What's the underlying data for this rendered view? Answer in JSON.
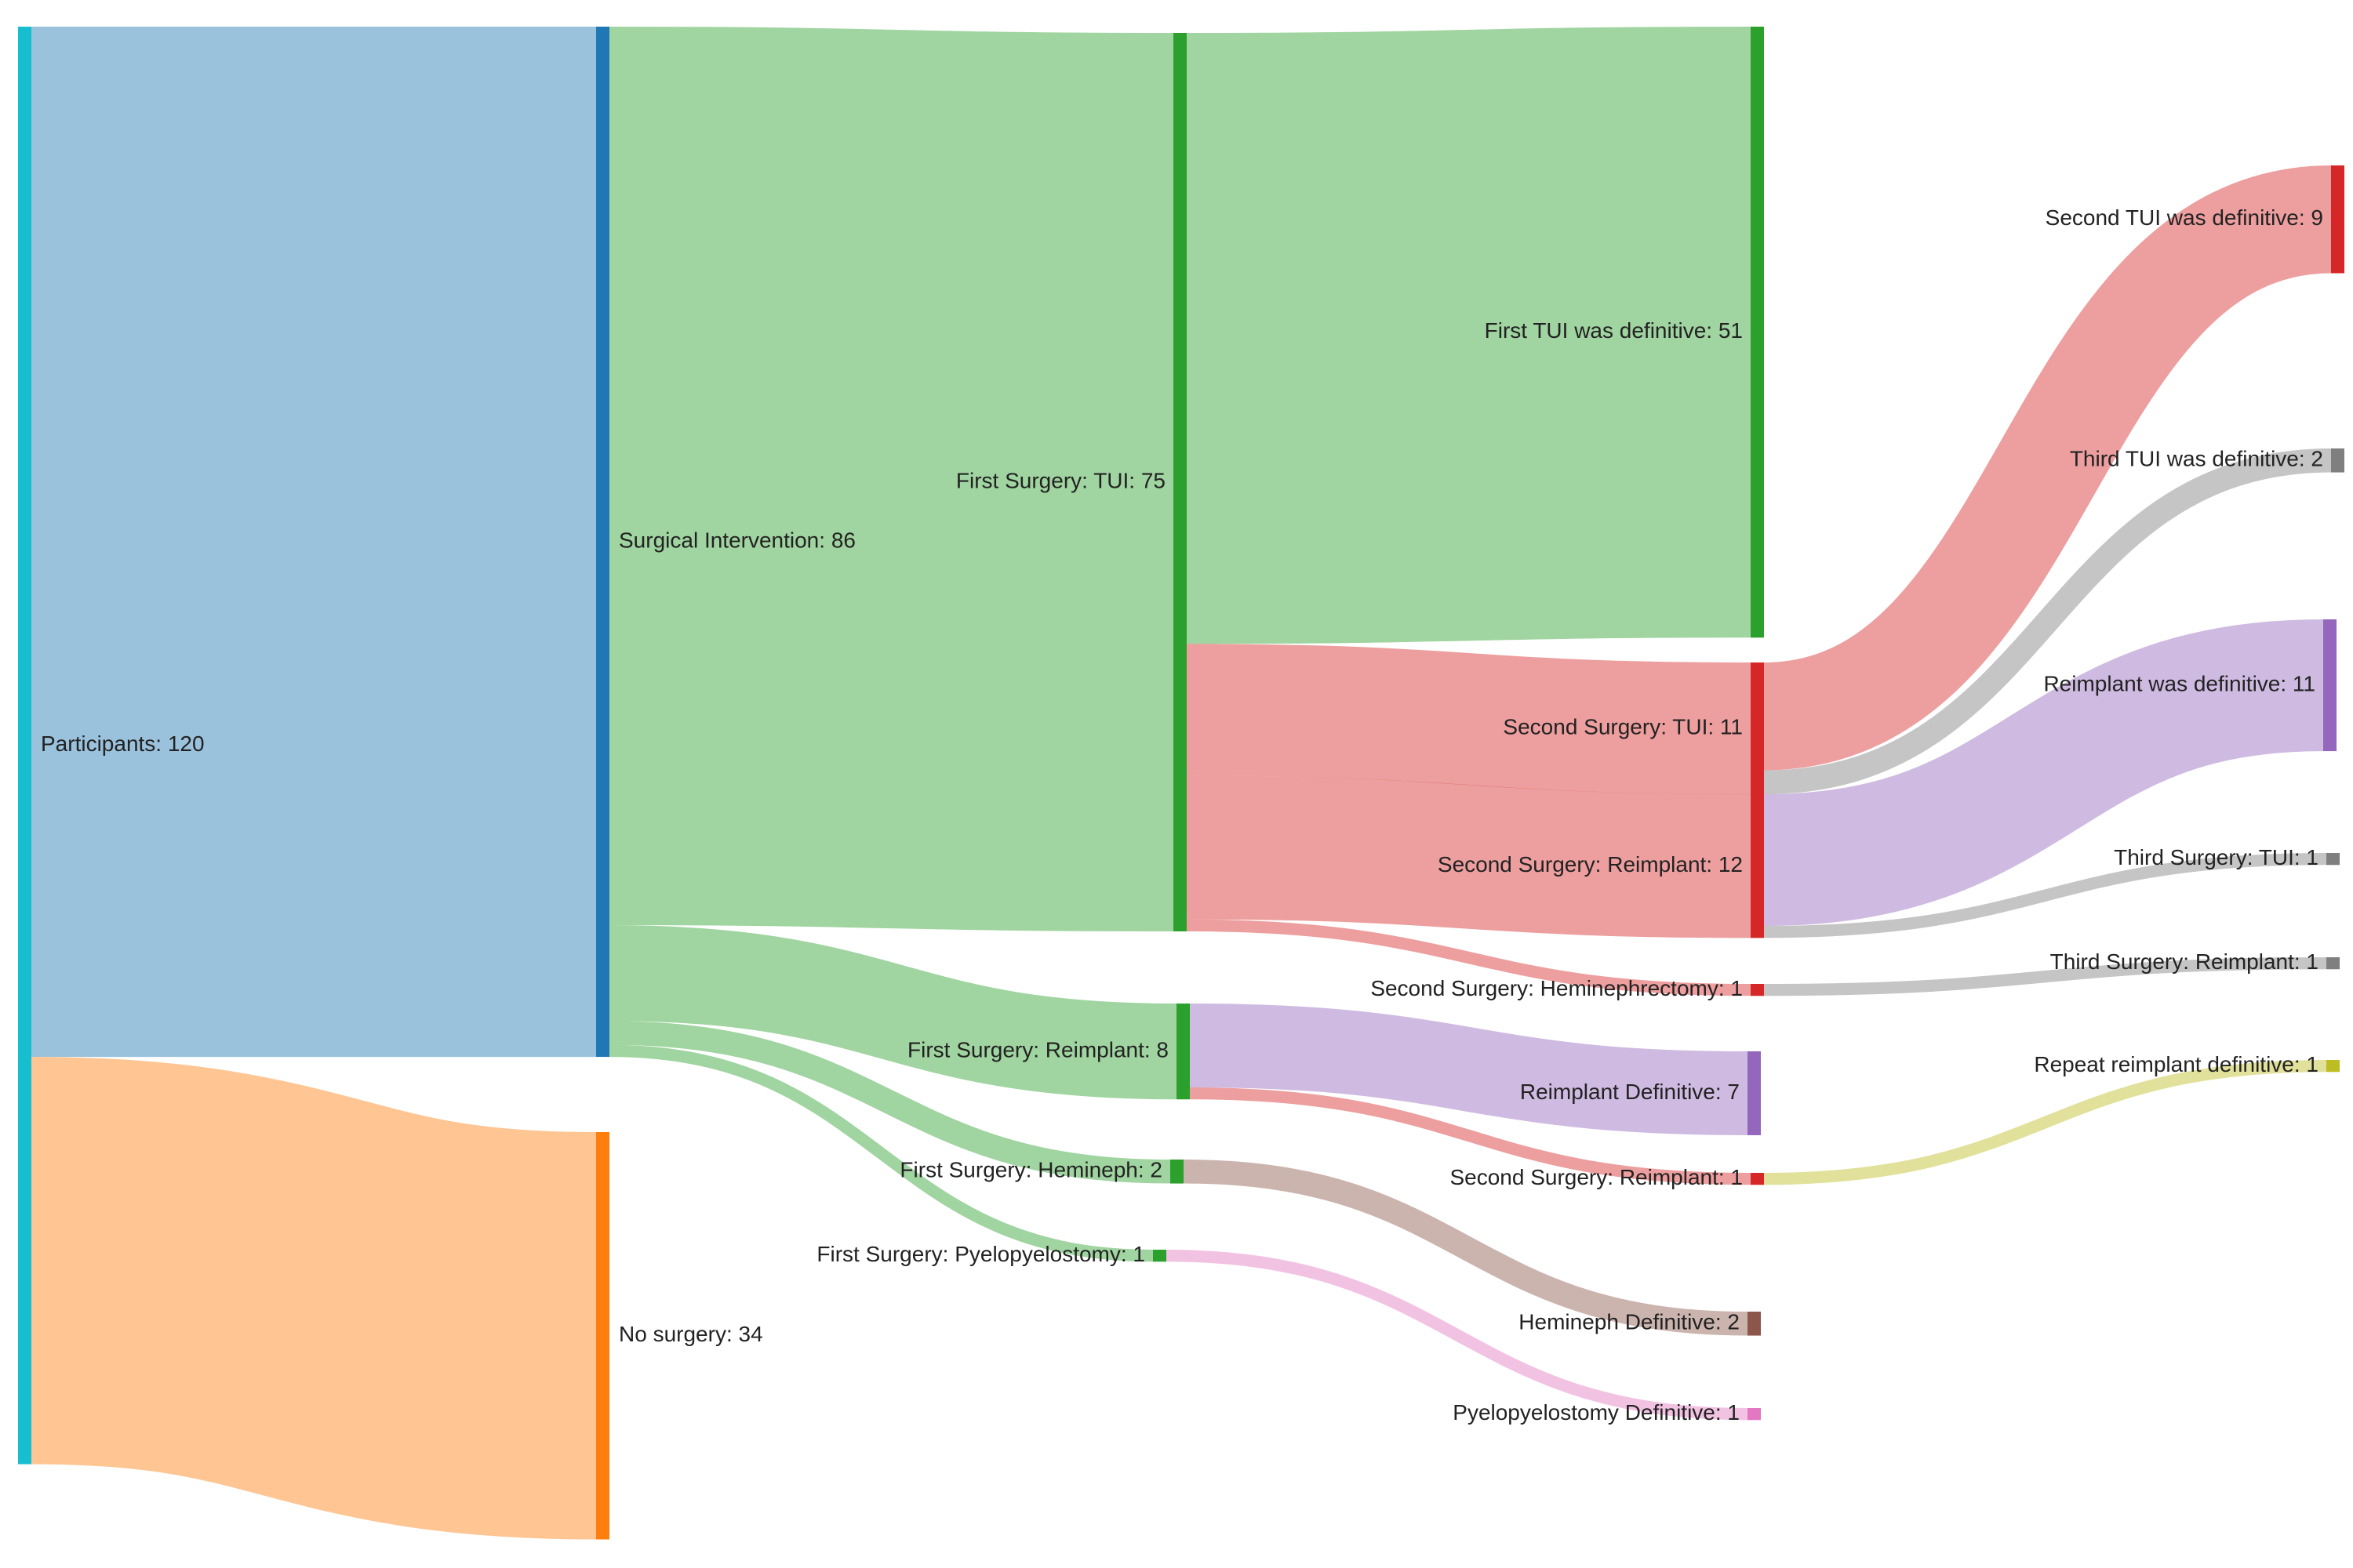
{
  "chart_data": {
    "type": "sankey",
    "colors": {
      "participants": "#17becf",
      "surgical": "#1f77b4",
      "nosurgery": "#ff7f0e",
      "green": "#2ca02c",
      "red": "#d62728",
      "purple": "#9467bd",
      "gray": "#7f7f7f",
      "brown": "#8c564b",
      "pink": "#e377c2",
      "olive": "#bcbd22"
    },
    "nodes": [
      {
        "id": "participants",
        "label": "Participants: 120",
        "color": "participants"
      },
      {
        "id": "surgical",
        "label": "Surgical Intervention: 86",
        "color": "surgical"
      },
      {
        "id": "nosurgery",
        "label": "No surgery: 34",
        "color": "nosurgery"
      },
      {
        "id": "tui1",
        "label": "First Surgery: TUI: 75",
        "color": "green"
      },
      {
        "id": "reimp1",
        "label": "First Surgery: Reimplant: 8",
        "color": "green"
      },
      {
        "id": "hemi1",
        "label": "First Surgery: Hemineph: 2",
        "color": "green"
      },
      {
        "id": "pyelo1",
        "label": "First Surgery: Pyelopyelostomy: 1",
        "color": "green"
      },
      {
        "id": "tui1def",
        "label": "First TUI was definitive: 51",
        "color": "green"
      },
      {
        "id": "tui2",
        "label": "Second Surgery: TUI: 11",
        "color": "red"
      },
      {
        "id": "reimp2",
        "label": "Second Surgery: Reimplant: 12",
        "color": "red"
      },
      {
        "id": "hemi2",
        "label": "Second Surgery: Heminephrectomy: 1",
        "color": "red"
      },
      {
        "id": "reimpdef",
        "label": "Reimplant Definitive: 7",
        "color": "purple"
      },
      {
        "id": "reimp2b",
        "label": "Second Surgery: Reimplant: 1",
        "color": "red"
      },
      {
        "id": "hemidef",
        "label": "Hemineph Definitive: 2",
        "color": "brown"
      },
      {
        "id": "pyelodef",
        "label": "Pyelopyelostomy Definitive: 1",
        "color": "pink"
      },
      {
        "id": "tui2def",
        "label": "Second TUI was definitive: 9",
        "color": "red"
      },
      {
        "id": "tui3def",
        "label": "Third TUI was definitive: 2",
        "color": "gray"
      },
      {
        "id": "reimpwasdef",
        "label": "Reimplant was definitive: 11",
        "color": "purple"
      },
      {
        "id": "tui3",
        "label": "Third Surgery: TUI: 1",
        "color": "gray"
      },
      {
        "id": "reimp3",
        "label": "Third Surgery: Reimplant: 1",
        "color": "gray"
      },
      {
        "id": "repeatdef",
        "label": "Repeat reimplant definitive: 1",
        "color": "olive"
      }
    ],
    "links": [
      {
        "source": "participants",
        "target": "surgical",
        "value": 86
      },
      {
        "source": "participants",
        "target": "nosurgery",
        "value": 34
      },
      {
        "source": "surgical",
        "target": "tui1",
        "value": 75
      },
      {
        "source": "surgical",
        "target": "reimp1",
        "value": 8
      },
      {
        "source": "surgical",
        "target": "hemi1",
        "value": 2
      },
      {
        "source": "surgical",
        "target": "pyelo1",
        "value": 1
      },
      {
        "source": "tui1",
        "target": "tui1def",
        "value": 51
      },
      {
        "source": "tui1",
        "target": "tui2",
        "value": 11
      },
      {
        "source": "tui1",
        "target": "reimp2",
        "value": 12
      },
      {
        "source": "tui1",
        "target": "hemi2",
        "value": 1
      },
      {
        "source": "reimp1",
        "target": "reimpdef",
        "value": 7
      },
      {
        "source": "reimp1",
        "target": "reimp2b",
        "value": 1
      },
      {
        "source": "hemi1",
        "target": "hemidef",
        "value": 2
      },
      {
        "source": "pyelo1",
        "target": "pyelodef",
        "value": 1
      },
      {
        "source": "tui2",
        "target": "tui2def",
        "value": 9
      },
      {
        "source": "tui2",
        "target": "tui3def",
        "value": 2
      },
      {
        "source": "reimp2",
        "target": "reimpwasdef",
        "value": 11
      },
      {
        "source": "reimp2",
        "target": "tui3",
        "value": 1
      },
      {
        "source": "hemi2",
        "target": "reimp3",
        "value": 1
      },
      {
        "source": "reimp2b",
        "target": "repeatdef",
        "value": 1
      }
    ]
  }
}
